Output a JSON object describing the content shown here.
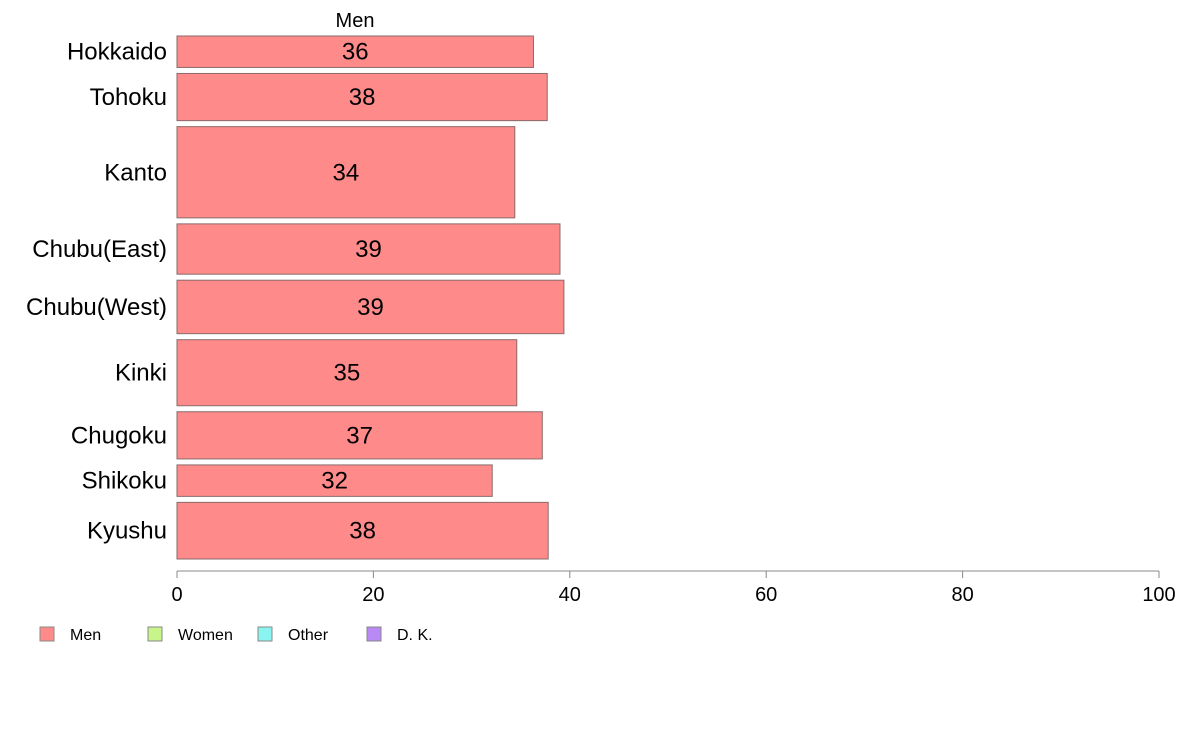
{
  "chart_data": {
    "type": "bar",
    "orientation": "horizontal",
    "series_header": "Men",
    "categories": [
      "Hokkaido",
      "Tohoku",
      "Kanto",
      "Chubu(East)",
      "Chubu(West)",
      "Kinki",
      "Chugoku",
      "Shikoku",
      "Kyushu"
    ],
    "values": [
      36.3,
      37.7,
      34.4,
      39.0,
      39.4,
      34.6,
      37.2,
      32.1,
      37.8
    ],
    "data_labels": [
      "36",
      "38",
      "34",
      "39",
      "39",
      "35",
      "37",
      "32",
      "38"
    ],
    "relative_bar_widths": [
      1.0,
      1.5,
      2.9,
      1.6,
      1.7,
      2.1,
      1.5,
      1.0,
      1.8
    ],
    "xlim": [
      0,
      100
    ],
    "x_ticks": [
      "0",
      "20",
      "40",
      "60",
      "80",
      "100"
    ],
    "grid": false,
    "legend_position": "bottom-left",
    "legend": [
      {
        "label": "Men",
        "color": "#ff8a8a"
      },
      {
        "label": "Women",
        "color": "#c8f58a"
      },
      {
        "label": "Other",
        "color": "#8af5f0"
      },
      {
        "label": "D. K.",
        "color": "#b98af5"
      }
    ],
    "bar_color": "#ff8a8a",
    "bar_border_color": "#8a6a6a",
    "axis_color": "#888888"
  }
}
